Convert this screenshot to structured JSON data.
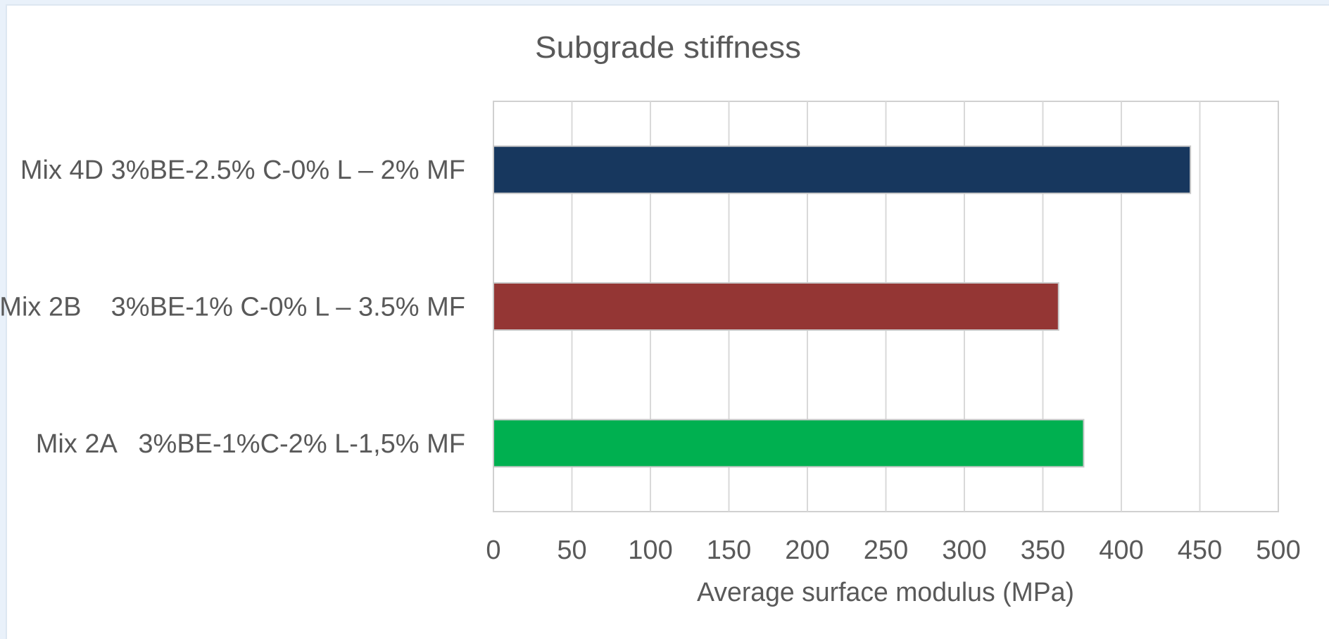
{
  "chart_data": {
    "type": "bar",
    "orientation": "horizontal",
    "title": "Subgrade stiffness",
    "xlabel": "Average surface modulus (MPa)",
    "ylabel": "",
    "xlim": [
      0,
      500
    ],
    "xticks": [
      "0",
      "50",
      "100",
      "150",
      "200",
      "250",
      "300",
      "350",
      "400",
      "450",
      "500"
    ],
    "grid": true,
    "categories": [
      "Mix 4D 3%BE-2.5% C-0% L – 2% MF",
      "Mix 2B    3%BE-1% C-0% L – 3.5% MF",
      "Mix 2A   3%BE-1%C-2% L-1,5% MF"
    ],
    "values": [
      444,
      360,
      376
    ],
    "colors": [
      "#17375e",
      "#943634",
      "#00b050"
    ]
  }
}
